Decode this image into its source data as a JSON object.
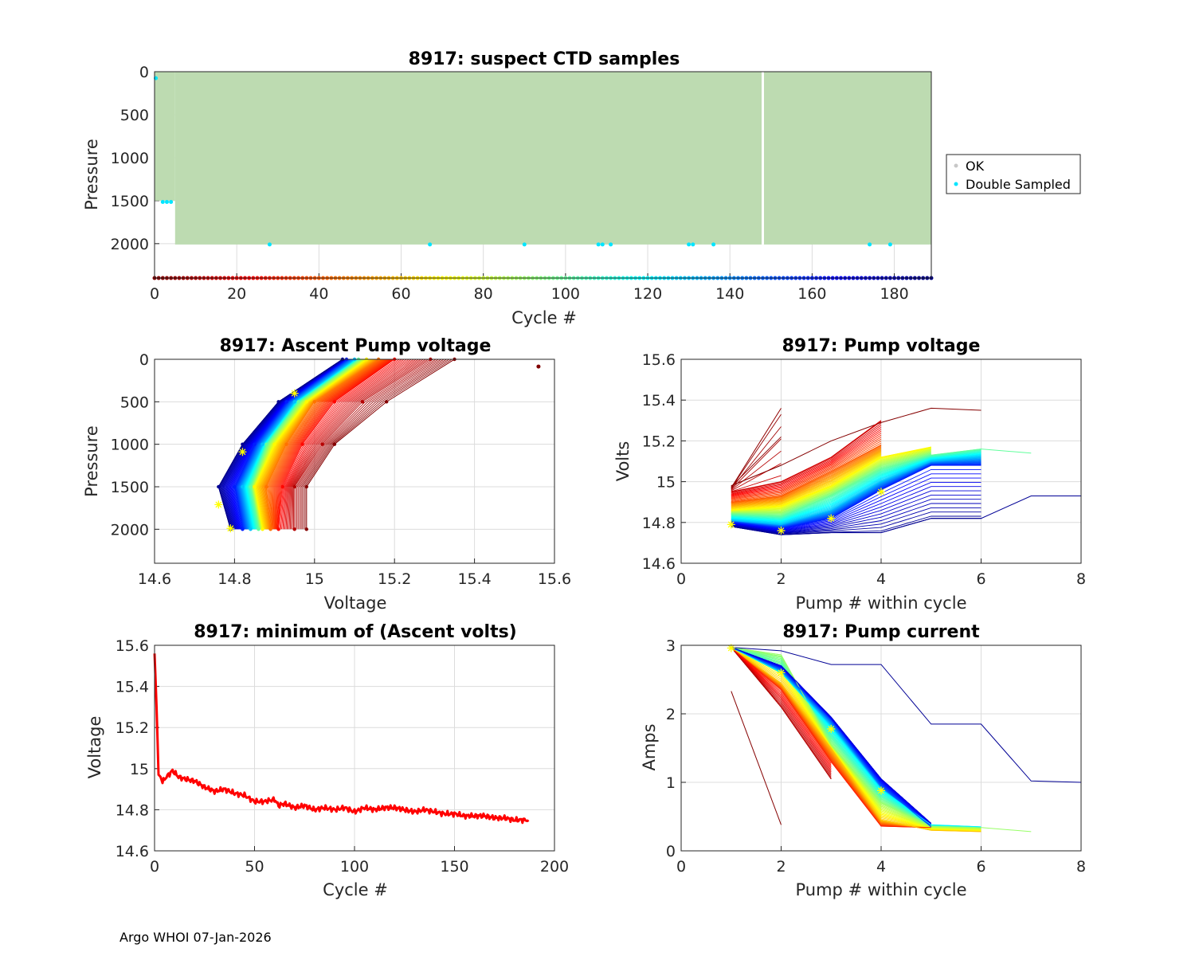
{
  "footer": "Argo WHOI 07-Jan-2026",
  "colors": {
    "ok": "#bddbb1",
    "ok_marker": "#c8c8c8",
    "double_sampled": "#00e5ff",
    "min_volts_line": "#ff0000",
    "star": "#ffff00",
    "grid": "#dcdcdc"
  },
  "chart_data": [
    {
      "id": "suspect",
      "type": "scatter",
      "title": "8917: suspect CTD samples",
      "xlabel": "Cycle #",
      "ylabel": "Pressure",
      "xlim": [
        0,
        189
      ],
      "ylim": [
        0,
        2400
      ],
      "y_reversed": true,
      "xticks": [
        "0",
        "20",
        "40",
        "60",
        "80",
        "100",
        "120",
        "140",
        "160",
        "180"
      ],
      "yticks": [
        "0",
        "500",
        "1000",
        "1500",
        "2000"
      ],
      "legend": [
        "OK",
        "Double Sampled"
      ],
      "legend_position": "outside-right",
      "ok_profiles": {
        "cycles": [
          0,
          189
        ],
        "shallow_cycles": [
          0,
          5
        ],
        "shallow_max_pressure": 1500,
        "max_pressure": 2010,
        "gap_cycle": 148
      },
      "double_sampled": [
        {
          "cycle": 0.3,
          "pressure": 75
        },
        {
          "cycle": 2,
          "pressure": 1515
        },
        {
          "cycle": 3,
          "pressure": 1515
        },
        {
          "cycle": 4,
          "pressure": 1515
        },
        {
          "cycle": 28,
          "pressure": 2010
        },
        {
          "cycle": 67,
          "pressure": 2010
        },
        {
          "cycle": 90,
          "pressure": 2010
        },
        {
          "cycle": 108,
          "pressure": 2010
        },
        {
          "cycle": 109,
          "pressure": 2010
        },
        {
          "cycle": 111,
          "pressure": 2010
        },
        {
          "cycle": 130,
          "pressure": 2010
        },
        {
          "cycle": 131,
          "pressure": 2010
        },
        {
          "cycle": 136,
          "pressure": 2010
        },
        {
          "cycle": 174,
          "pressure": 2010
        },
        {
          "cycle": 179,
          "pressure": 2010
        }
      ],
      "cycle_color_strip": {
        "cycles": [
          0,
          189
        ],
        "pressure": 2400,
        "colormap": "jet-reversed"
      }
    },
    {
      "id": "ascent",
      "type": "line",
      "title": "8917: Ascent Pump voltage",
      "xlabel": "Voltage",
      "ylabel": "Pressure",
      "xlim": [
        14.6,
        15.6
      ],
      "ylim": [
        0,
        2400
      ],
      "y_reversed": true,
      "xticks": [
        "14.6",
        "14.8",
        "15",
        "15.2",
        "15.4",
        "15.6"
      ],
      "yticks": [
        "0",
        "500",
        "1000",
        "1500",
        "2000"
      ],
      "profiles": [
        {
          "cycle": 1,
          "points": [
            [
              15.35,
              0
            ],
            [
              15.18,
              500
            ],
            [
              15.05,
              1000
            ],
            [
              14.98,
              1500
            ],
            [
              14.98,
              2000
            ]
          ]
        },
        {
          "cycle": 10,
          "points": [
            [
              15.29,
              0
            ],
            [
              15.12,
              500
            ],
            [
              15.02,
              1000
            ],
            [
              14.95,
              1500
            ],
            [
              14.95,
              2000
            ]
          ]
        },
        {
          "cycle": 25,
          "points": [
            [
              15.2,
              0
            ],
            [
              15.05,
              500
            ],
            [
              14.97,
              1000
            ],
            [
              14.92,
              1500
            ],
            [
              14.91,
              2000
            ]
          ]
        },
        {
          "cycle": 45,
          "points": [
            [
              15.16,
              0
            ],
            [
              15.0,
              500
            ],
            [
              14.93,
              1000
            ],
            [
              14.88,
              1500
            ],
            [
              14.89,
              2000
            ]
          ]
        },
        {
          "cycle": 70,
          "points": [
            [
              15.13,
              0
            ],
            [
              14.98,
              500
            ],
            [
              14.9,
              1000
            ],
            [
              14.85,
              1500
            ],
            [
              14.87,
              2000
            ]
          ]
        },
        {
          "cycle": 100,
          "points": [
            [
              15.11,
              0
            ],
            [
              14.96,
              500
            ],
            [
              14.88,
              1000
            ],
            [
              14.84,
              1500
            ],
            [
              14.86,
              2000
            ]
          ]
        },
        {
          "cycle": 130,
          "points": [
            [
              15.1,
              0
            ],
            [
              14.95,
              500
            ],
            [
              14.87,
              1000
            ],
            [
              14.82,
              1500
            ],
            [
              14.84,
              2000
            ]
          ]
        },
        {
          "cycle": 160,
          "points": [
            [
              15.08,
              0
            ],
            [
              14.93,
              500
            ],
            [
              14.85,
              1000
            ],
            [
              14.8,
              1500
            ],
            [
              14.82,
              2000
            ]
          ]
        },
        {
          "cycle": 185,
          "points": [
            [
              15.07,
              0
            ],
            [
              14.91,
              500
            ],
            [
              14.82,
              1000
            ],
            [
              14.76,
              1500
            ],
            [
              14.79,
              2000
            ]
          ]
        }
      ],
      "outliers": [
        {
          "cycle": 0,
          "voltage": 15.56,
          "pressure": 85
        }
      ],
      "star_points": [
        [
          14.95,
          400
        ],
        [
          14.82,
          1090
        ],
        [
          14.76,
          1710
        ],
        [
          14.79,
          1990
        ]
      ]
    },
    {
      "id": "pumpv",
      "type": "line",
      "title": "8917: Pump voltage",
      "xlabel": "Pump # within cycle",
      "ylabel": "Volts",
      "xlim": [
        0,
        8
      ],
      "ylim": [
        14.6,
        15.6
      ],
      "xticks": [
        "0",
        "2",
        "4",
        "6",
        "8"
      ],
      "yticks": [
        "14.6",
        "14.8",
        "15",
        "15.2",
        "15.4",
        "15.6"
      ],
      "series": [
        {
          "cycle": 1,
          "values": [
            14.98,
            15.08,
            15.2,
            15.29,
            15.36,
            15.35
          ]
        },
        {
          "cycle": 3,
          "values": [
            14.97,
            15.36
          ]
        },
        {
          "cycle": 15,
          "values": [
            14.95,
            15.0,
            15.12,
            15.3
          ]
        },
        {
          "cycle": 40,
          "values": [
            14.9,
            14.93,
            15.05,
            15.18
          ]
        },
        {
          "cycle": 70,
          "values": [
            14.86,
            14.88,
            14.98,
            15.12,
            15.17
          ]
        },
        {
          "cycle": 100,
          "values": [
            14.84,
            14.83,
            14.93,
            15.06,
            15.13,
            15.16,
            15.14
          ]
        },
        {
          "cycle": 130,
          "values": [
            14.81,
            14.79,
            14.86,
            15.0,
            15.1,
            15.12
          ]
        },
        {
          "cycle": 160,
          "values": [
            14.8,
            14.77,
            14.82,
            14.96,
            15.08,
            15.08
          ]
        },
        {
          "cycle": 185,
          "values": [
            14.78,
            14.74,
            14.75,
            14.75,
            14.82,
            14.82,
            14.93,
            14.93
          ]
        }
      ],
      "star_points": [
        [
          1,
          14.79
        ],
        [
          2,
          14.76
        ],
        [
          3,
          14.82
        ],
        [
          4,
          14.95
        ]
      ]
    },
    {
      "id": "minv",
      "type": "line",
      "title": "8917: minimum of (Ascent volts)",
      "xlabel": "Cycle #",
      "ylabel": "Voltage",
      "xlim": [
        0,
        200
      ],
      "ylim": [
        14.6,
        15.6
      ],
      "xticks": [
        "0",
        "50",
        "100",
        "150",
        "200"
      ],
      "yticks": [
        "14.6",
        "14.8",
        "15",
        "15.2",
        "15.4",
        "15.6"
      ],
      "x": [
        0,
        1,
        2,
        3,
        4,
        5,
        7,
        9,
        12,
        15,
        20,
        25,
        30,
        35,
        40,
        45,
        50,
        55,
        60,
        62,
        65,
        70,
        75,
        80,
        85,
        90,
        95,
        100,
        105,
        110,
        115,
        120,
        125,
        130,
        135,
        140,
        145,
        150,
        155,
        160,
        165,
        170,
        175,
        180,
        185,
        187
      ],
      "values": [
        15.56,
        15.3,
        14.97,
        14.96,
        14.93,
        14.95,
        14.97,
        14.99,
        14.96,
        14.95,
        14.94,
        14.91,
        14.89,
        14.9,
        14.88,
        14.87,
        14.84,
        14.84,
        14.85,
        14.82,
        14.83,
        14.81,
        14.82,
        14.8,
        14.81,
        14.8,
        14.81,
        14.79,
        14.81,
        14.8,
        14.81,
        14.81,
        14.8,
        14.79,
        14.8,
        14.79,
        14.78,
        14.78,
        14.77,
        14.77,
        14.77,
        14.76,
        14.76,
        14.75,
        14.75,
        14.75
      ]
    },
    {
      "id": "pumpc",
      "type": "line",
      "title": "8917: Pump current",
      "xlabel": "Pump # within cycle",
      "ylabel": "Amps",
      "xlim": [
        0,
        8
      ],
      "ylim": [
        0,
        3
      ],
      "xticks": [
        "0",
        "2",
        "4",
        "6",
        "8"
      ],
      "yticks": [
        "0",
        "1",
        "2",
        "3"
      ],
      "series": [
        {
          "cycle": 1,
          "values": [
            2.33,
            0.38
          ]
        },
        {
          "cycle": 10,
          "values": [
            2.97,
            2.1,
            1.05
          ]
        },
        {
          "cycle": 30,
          "values": [
            2.97,
            2.35,
            1.3,
            0.36,
            0.34
          ]
        },
        {
          "cycle": 60,
          "values": [
            2.97,
            2.45,
            1.5,
            0.45,
            0.3,
            0.28
          ]
        },
        {
          "cycle": 90,
          "values": [
            2.97,
            2.86,
            1.55,
            0.7,
            0.36,
            0.34,
            0.28
          ]
        },
        {
          "cycle": 120,
          "values": [
            2.97,
            2.6,
            1.8,
            0.9,
            0.38,
            0.35
          ]
        },
        {
          "cycle": 150,
          "values": [
            2.97,
            2.65,
            1.9,
            0.95,
            0.35
          ]
        },
        {
          "cycle": 170,
          "values": [
            2.97,
            2.7,
            1.95,
            1.05,
            0.4
          ]
        },
        {
          "cycle": 185,
          "values": [
            2.97,
            2.92,
            2.72,
            2.72,
            1.85,
            1.85,
            1.02,
            1.0
          ]
        }
      ],
      "star_points": [
        [
          1,
          2.96
        ],
        [
          2,
          2.6
        ],
        [
          3,
          1.78
        ],
        [
          4,
          0.88
        ]
      ]
    }
  ]
}
